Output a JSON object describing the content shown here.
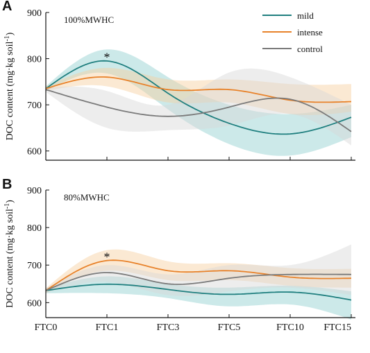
{
  "figure": {
    "ylabel": "DOC content (mg·kg soil",
    "ylabel_sup": "-1",
    "ylabel_close": ")"
  },
  "legend": {
    "position": "top-right",
    "items": [
      {
        "label": "mild",
        "color": "#1f7f7f"
      },
      {
        "label": "intense",
        "color": "#e8822a"
      },
      {
        "label": "control",
        "color": "#7a7a7a"
      }
    ]
  },
  "chart_data": [
    {
      "type": "line",
      "panel": "A",
      "condition": "100%MWHC",
      "categories": [
        "FTC0",
        "FTC1",
        "FTC3",
        "FTC5",
        "FTC10",
        "FTC15"
      ],
      "ylim": [
        580,
        900
      ],
      "yticks": [
        600,
        700,
        800,
        900
      ],
      "grid": false,
      "series": [
        {
          "name": "mild",
          "color": "#1f7f7f",
          "band_color": "#8fcfcf",
          "values": [
            735,
            795,
            725,
            660,
            637,
            673
          ],
          "lower": [
            730,
            768,
            690,
            615,
            590,
            630
          ],
          "upper": [
            740,
            820,
            760,
            700,
            680,
            700
          ]
        },
        {
          "name": "intense",
          "color": "#e8822a",
          "band_color": "#f6cf9e",
          "values": [
            735,
            760,
            733,
            733,
            710,
            707
          ],
          "lower": [
            730,
            740,
            705,
            705,
            680,
            685
          ],
          "upper": [
            740,
            780,
            755,
            755,
            745,
            745
          ]
        },
        {
          "name": "control",
          "color": "#7a7a7a",
          "band_color": "#d8d8d8",
          "values": [
            733,
            695,
            675,
            695,
            712,
            642
          ],
          "lower": [
            728,
            650,
            645,
            655,
            680,
            612
          ],
          "upper": [
            738,
            730,
            700,
            770,
            760,
            700
          ]
        }
      ],
      "annotations": [
        {
          "text": "*",
          "x": "FTC1",
          "y": 797
        }
      ]
    },
    {
      "type": "line",
      "panel": "B",
      "condition": "80%MWHC",
      "categories": [
        "FTC0",
        "FTC1",
        "FTC3",
        "FTC5",
        "FTC10",
        "FTC15"
      ],
      "ylim": [
        560,
        900
      ],
      "yticks": [
        600,
        700,
        800,
        900
      ],
      "grid": false,
      "series": [
        {
          "name": "mild",
          "color": "#1f7f7f",
          "band_color": "#8fcfcf",
          "values": [
            632,
            649,
            635,
            622,
            628,
            607
          ],
          "lower": [
            625,
            625,
            612,
            590,
            595,
            555
          ],
          "upper": [
            638,
            670,
            650,
            640,
            645,
            630
          ]
        },
        {
          "name": "intense",
          "color": "#e8822a",
          "band_color": "#f6cf9e",
          "values": [
            632,
            712,
            685,
            685,
            668,
            665
          ],
          "lower": [
            625,
            685,
            660,
            660,
            645,
            640
          ],
          "upper": [
            638,
            740,
            710,
            705,
            692,
            690
          ]
        },
        {
          "name": "control",
          "color": "#7a7a7a",
          "band_color": "#d8d8d8",
          "values": [
            632,
            680,
            650,
            665,
            675,
            675
          ],
          "lower": [
            625,
            655,
            620,
            630,
            640,
            620
          ],
          "upper": [
            638,
            700,
            675,
            700,
            700,
            755
          ]
        }
      ],
      "annotations": [
        {
          "text": "*",
          "x": "FTC1",
          "y": 714
        }
      ]
    }
  ]
}
